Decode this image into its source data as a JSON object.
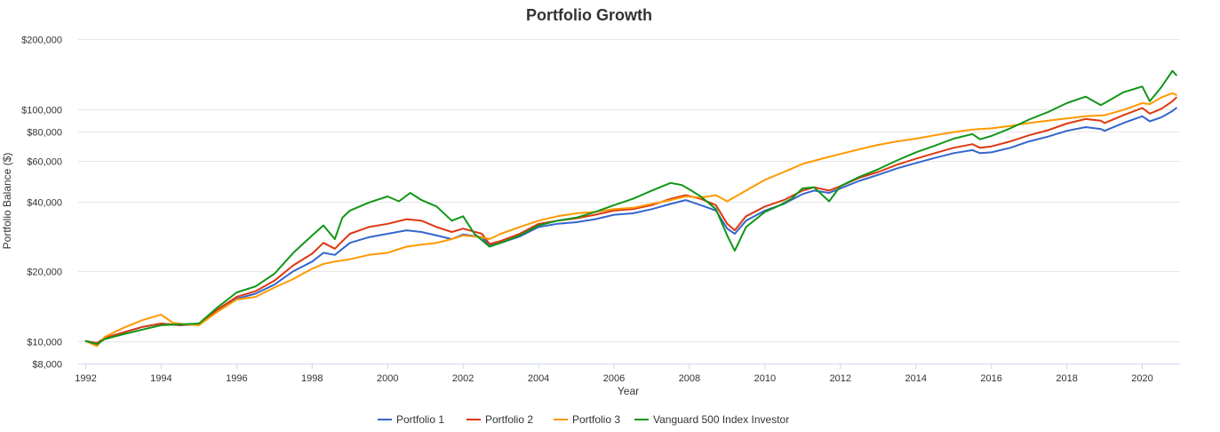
{
  "chart_data": {
    "type": "line",
    "title": "Portfolio Growth",
    "xlabel": "Year",
    "ylabel": "Portfolio Balance ($)",
    "y_scale": "log",
    "ylim": [
      8000,
      200000
    ],
    "xlim": [
      1992,
      2020.9
    ],
    "y_ticks": [
      8000,
      10000,
      20000,
      40000,
      60000,
      80000,
      100000,
      200000
    ],
    "y_tick_labels": [
      "$8,000",
      "$10,000",
      "$20,000",
      "$40,000",
      "$60,000",
      "$80,000",
      "$100,000",
      "$200,000"
    ],
    "x_ticks": [
      1992,
      1994,
      1996,
      1998,
      2000,
      2002,
      2004,
      2006,
      2008,
      2010,
      2012,
      2014,
      2016,
      2018,
      2020
    ],
    "x_tick_labels": [
      "1992",
      "1994",
      "1996",
      "1998",
      "2000",
      "2002",
      "2004",
      "2006",
      "2008",
      "2010",
      "2012",
      "2014",
      "2016",
      "2018",
      "2020"
    ],
    "grid": "horizontal",
    "legend": "bottom-center",
    "series": [
      {
        "name": "Portfolio 1",
        "color": "#3366cc",
        "x": [
          1992.0,
          1992.3,
          1992.5,
          1993.0,
          1993.5,
          1994.0,
          1994.5,
          1995.0,
          1995.5,
          1996.0,
          1996.5,
          1997.0,
          1997.5,
          1998.0,
          1998.3,
          1998.6,
          1999.0,
          1999.5,
          2000.0,
          2000.5,
          2000.9,
          2001.3,
          2001.7,
          2002.0,
          2002.5,
          2002.7,
          2003.0,
          2003.5,
          2004.0,
          2004.5,
          2005.0,
          2005.5,
          2006.0,
          2006.5,
          2007.0,
          2007.5,
          2007.9,
          2008.3,
          2008.7,
          2009.0,
          2009.2,
          2009.5,
          2010.0,
          2010.5,
          2011.0,
          2011.3,
          2011.7,
          2012.0,
          2012.5,
          2013.0,
          2013.5,
          2014.0,
          2014.5,
          2015.0,
          2015.5,
          2015.7,
          2016.0,
          2016.5,
          2017.0,
          2017.5,
          2018.0,
          2018.5,
          2018.9,
          2019.0,
          2019.5,
          2020.0,
          2020.2,
          2020.5,
          2020.8,
          2020.9
        ],
        "values": [
          10000,
          9800,
          10300,
          10900,
          11500,
          11900,
          11700,
          11800,
          13500,
          15200,
          16000,
          17500,
          20000,
          22000,
          24000,
          23500,
          26500,
          28000,
          29000,
          30000,
          29500,
          28500,
          27500,
          28800,
          28000,
          25800,
          26500,
          28200,
          31000,
          32000,
          32500,
          33500,
          35000,
          35500,
          37000,
          39000,
          40500,
          38500,
          36500,
          30500,
          29000,
          33000,
          36500,
          39000,
          43000,
          44500,
          43500,
          45500,
          49000,
          52000,
          55500,
          58500,
          61500,
          64500,
          66500,
          64500,
          65000,
          68000,
          72500,
          76000,
          80500,
          83500,
          82000,
          80500,
          87000,
          93000,
          88500,
          92000,
          98000,
          101000
        ]
      },
      {
        "name": "Portfolio 2",
        "color": "#dc3912",
        "x": [
          1992.0,
          1992.3,
          1992.5,
          1993.0,
          1993.5,
          1994.0,
          1994.5,
          1995.0,
          1995.5,
          1996.0,
          1996.5,
          1997.0,
          1997.5,
          1998.0,
          1998.3,
          1998.6,
          1999.0,
          1999.5,
          2000.0,
          2000.5,
          2000.9,
          2001.3,
          2001.7,
          2002.0,
          2002.5,
          2002.7,
          2003.0,
          2003.5,
          2004.0,
          2004.5,
          2005.0,
          2005.5,
          2006.0,
          2006.5,
          2007.0,
          2007.5,
          2007.9,
          2008.3,
          2008.7,
          2009.0,
          2009.2,
          2009.5,
          2010.0,
          2010.5,
          2011.0,
          2011.3,
          2011.7,
          2012.0,
          2012.5,
          2013.0,
          2013.5,
          2014.0,
          2014.5,
          2015.0,
          2015.5,
          2015.7,
          2016.0,
          2016.5,
          2017.0,
          2017.5,
          2018.0,
          2018.5,
          2018.9,
          2019.0,
          2019.5,
          2020.0,
          2020.2,
          2020.5,
          2020.8,
          2020.9
        ],
        "values": [
          10000,
          9800,
          10300,
          10900,
          11500,
          11900,
          11700,
          11900,
          13700,
          15500,
          16400,
          18200,
          21200,
          23800,
          26500,
          25000,
          29000,
          31000,
          32000,
          33500,
          33000,
          31000,
          29500,
          30500,
          29000,
          26200,
          27000,
          29000,
          32000,
          33000,
          33800,
          35000,
          36500,
          37000,
          38500,
          41000,
          42500,
          41000,
          38500,
          32000,
          30000,
          34500,
          38000,
          40500,
          44500,
          46000,
          44500,
          46500,
          50500,
          53500,
          57500,
          61000,
          64500,
          68000,
          70500,
          68000,
          69000,
          72500,
          77000,
          81000,
          86500,
          90500,
          89000,
          87000,
          94000,
          101000,
          95500,
          100000,
          108000,
          112000
        ]
      },
      {
        "name": "Portfolio 3",
        "color": "#ff9900",
        "x": [
          1992.0,
          1992.3,
          1992.5,
          1993.0,
          1993.5,
          1994.0,
          1994.3,
          1994.6,
          1995.0,
          1995.5,
          1996.0,
          1996.5,
          1997.0,
          1997.5,
          1998.0,
          1998.3,
          1998.6,
          1999.0,
          1999.5,
          2000.0,
          2000.5,
          2000.9,
          2001.3,
          2001.7,
          2002.0,
          2002.5,
          2002.7,
          2003.0,
          2003.5,
          2004.0,
          2004.5,
          2005.0,
          2005.5,
          2006.0,
          2006.5,
          2007.0,
          2007.5,
          2007.9,
          2008.3,
          2008.7,
          2009.0,
          2009.5,
          2010.0,
          2010.5,
          2011.0,
          2011.5,
          2012.0,
          2012.5,
          2013.0,
          2013.5,
          2014.0,
          2014.5,
          2015.0,
          2015.5,
          2016.0,
          2016.5,
          2017.0,
          2017.5,
          2018.0,
          2018.5,
          2019.0,
          2019.5,
          2020.0,
          2020.2,
          2020.5,
          2020.8,
          2020.9
        ],
        "values": [
          10000,
          9500,
          10400,
          11400,
          12300,
          13000,
          12000,
          11800,
          11700,
          13400,
          15100,
          15500,
          17000,
          18500,
          20500,
          21500,
          22000,
          22500,
          23500,
          24000,
          25500,
          26000,
          26500,
          27500,
          28500,
          28000,
          27500,
          29000,
          31000,
          33000,
          34500,
          35500,
          36000,
          37000,
          37500,
          39000,
          40500,
          42000,
          41500,
          42500,
          40000,
          44500,
          49500,
          53500,
          58000,
          61000,
          64000,
          67000,
          70000,
          72500,
          74500,
          77000,
          79500,
          81500,
          82500,
          84500,
          87000,
          89000,
          91000,
          93000,
          94000,
          99000,
          106000,
          105000,
          112000,
          117000,
          115000
        ]
      },
      {
        "name": "Vanguard 500 Index Investor",
        "color": "#109618",
        "x": [
          1992.0,
          1992.3,
          1992.5,
          1993.0,
          1993.5,
          1994.0,
          1994.5,
          1995.0,
          1995.5,
          1996.0,
          1996.5,
          1997.0,
          1997.5,
          1998.0,
          1998.3,
          1998.6,
          1998.8,
          1999.0,
          1999.5,
          2000.0,
          2000.3,
          2000.6,
          2000.9,
          2001.3,
          2001.7,
          2002.0,
          2002.3,
          2002.7,
          2003.0,
          2003.5,
          2004.0,
          2004.5,
          2005.0,
          2005.5,
          2006.0,
          2006.5,
          2007.0,
          2007.5,
          2007.8,
          2008.0,
          2008.3,
          2008.7,
          2009.0,
          2009.2,
          2009.5,
          2010.0,
          2010.4,
          2010.7,
          2011.0,
          2011.3,
          2011.7,
          2012.0,
          2012.5,
          2013.0,
          2013.5,
          2014.0,
          2014.5,
          2015.0,
          2015.5,
          2015.7,
          2016.0,
          2016.5,
          2017.0,
          2017.5,
          2018.0,
          2018.5,
          2018.9,
          2019.0,
          2019.5,
          2020.0,
          2020.2,
          2020.5,
          2020.8,
          2020.9
        ],
        "values": [
          10000,
          9700,
          10200,
          10700,
          11200,
          11700,
          11800,
          11900,
          14000,
          16200,
          17200,
          19500,
          24000,
          28500,
          31500,
          27500,
          34000,
          36500,
          39500,
          42000,
          40000,
          43500,
          40500,
          38000,
          33000,
          34500,
          29000,
          25500,
          26500,
          28500,
          31500,
          33000,
          34000,
          36000,
          38500,
          41000,
          44500,
          48000,
          47000,
          45000,
          42000,
          37000,
          28500,
          24500,
          31000,
          36000,
          38500,
          41000,
          45500,
          46000,
          40000,
          46500,
          51000,
          55000,
          60000,
          65000,
          69500,
          74500,
          78000,
          74000,
          76500,
          82500,
          90000,
          97000,
          106000,
          113000,
          104000,
          106000,
          118000,
          125000,
          108000,
          124000,
          146000,
          140000
        ]
      }
    ]
  }
}
